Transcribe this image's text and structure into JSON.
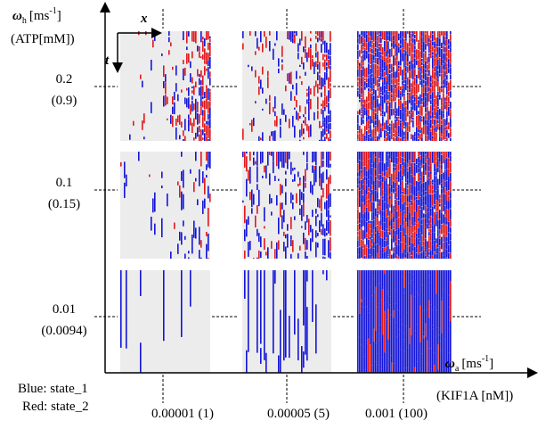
{
  "y_axis": {
    "symbol": "ω",
    "subscript": "h",
    "unit": "[ms",
    "exponent": "-1",
    "unit_close": "]",
    "sublabel": "(ATP[mM])",
    "ticks": [
      {
        "label": "0.2",
        "sublabel": "(0.9)"
      },
      {
        "label": "0.1",
        "sublabel": "(0.15)"
      },
      {
        "label": "0.01",
        "sublabel": "(0.0094)"
      }
    ]
  },
  "x_axis": {
    "symbol": "ω",
    "subscript": "a",
    "unit": "[ms",
    "exponent": "-1",
    "unit_close": "]",
    "sublabel": "(KIF1A [nM])",
    "ticks": [
      "0.00001  (1)",
      "0.00005 (5)",
      "0.001 (100)"
    ]
  },
  "inset": {
    "x_label": "x",
    "t_label": "t"
  },
  "legend": [
    "Blue: state_1",
    "Red: state_2"
  ]
}
